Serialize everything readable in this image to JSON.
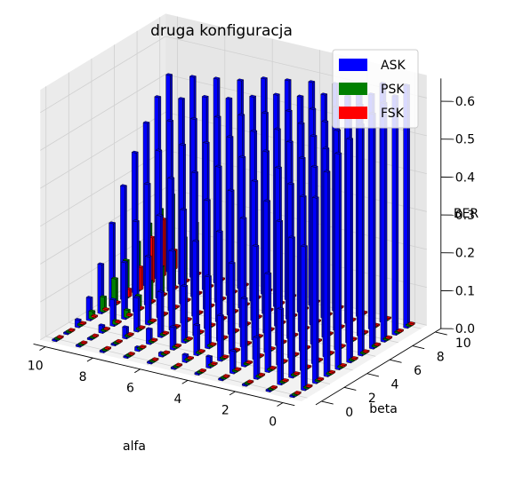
{
  "chart_data": {
    "type": "bar",
    "subtype": "3d-bar",
    "title": "druga konfiguracja",
    "xlabel": "alfa",
    "ylabel": "beta",
    "zlabel": "BER",
    "x_ticks": [
      "0",
      "2",
      "4",
      "6",
      "8",
      "10"
    ],
    "y_ticks": [
      "0",
      "2",
      "4",
      "6",
      "8",
      "10"
    ],
    "z_ticks": [
      "0.0",
      "0.1",
      "0.2",
      "0.3",
      "0.4",
      "0.5",
      "0.6"
    ],
    "xlim": [
      0,
      10
    ],
    "ylim": [
      0,
      10
    ],
    "zlim": [
      0,
      0.6
    ],
    "grid": true,
    "legend_position": "top-right",
    "x": [
      0,
      1,
      2,
      3,
      4,
      5,
      6,
      7,
      8,
      9,
      10
    ],
    "y": [
      0,
      1,
      2,
      3,
      4,
      5,
      6,
      7,
      8,
      9,
      10
    ],
    "series": [
      {
        "name": "ASK",
        "color": "#0000ff",
        "values": [
          [
            0.0,
            0.38,
            0.49,
            0.54,
            0.57,
            0.59,
            0.61,
            0.62,
            0.63,
            0.63,
            0.64
          ],
          [
            0.0,
            0.2,
            0.37,
            0.46,
            0.52,
            0.55,
            0.58,
            0.6,
            0.61,
            0.62,
            0.63
          ],
          [
            0.0,
            0.11,
            0.26,
            0.38,
            0.46,
            0.51,
            0.55,
            0.57,
            0.59,
            0.6,
            0.61
          ],
          [
            0.0,
            0.06,
            0.18,
            0.3,
            0.4,
            0.47,
            0.52,
            0.55,
            0.57,
            0.59,
            0.6
          ],
          [
            0.0,
            0.03,
            0.12,
            0.24,
            0.34,
            0.42,
            0.48,
            0.52,
            0.55,
            0.57,
            0.59
          ],
          [
            0.0,
            0.02,
            0.08,
            0.19,
            0.29,
            0.38,
            0.45,
            0.5,
            0.53,
            0.56,
            0.58
          ],
          [
            0.0,
            0.01,
            0.06,
            0.15,
            0.25,
            0.34,
            0.41,
            0.47,
            0.51,
            0.54,
            0.57
          ],
          [
            0.0,
            0.01,
            0.04,
            0.12,
            0.21,
            0.3,
            0.38,
            0.44,
            0.49,
            0.52,
            0.55
          ],
          [
            0.0,
            0.0,
            0.03,
            0.09,
            0.18,
            0.27,
            0.35,
            0.42,
            0.47,
            0.51,
            0.54
          ],
          [
            0.0,
            0.0,
            0.02,
            0.07,
            0.15,
            0.24,
            0.32,
            0.39,
            0.45,
            0.49,
            0.53
          ],
          [
            0.0,
            0.0,
            0.02,
            0.06,
            0.13,
            0.22,
            0.3,
            0.37,
            0.43,
            0.48,
            0.52
          ]
        ]
      },
      {
        "name": "PSK",
        "color": "#008000",
        "values": [
          [
            0.0,
            0.0,
            0.0,
            0.0,
            0.0,
            0.0,
            0.0,
            0.0,
            0.0,
            0.0,
            0.0
          ],
          [
            0.0,
            0.0,
            0.0,
            0.0,
            0.0,
            0.0,
            0.0,
            0.0,
            0.0,
            0.0,
            0.0
          ],
          [
            0.0,
            0.0,
            0.0,
            0.0,
            0.0,
            0.0,
            0.0,
            0.0,
            0.0,
            0.0,
            0.0
          ],
          [
            0.0,
            0.0,
            0.0,
            0.0,
            0.0,
            0.0,
            0.0,
            0.0,
            0.0,
            0.0,
            0.0
          ],
          [
            0.0,
            0.0,
            0.0,
            0.0,
            0.0,
            0.0,
            0.0,
            0.0,
            0.0,
            0.0,
            0.0
          ],
          [
            0.0,
            0.0,
            0.0,
            0.0,
            0.0,
            0.0,
            0.0,
            0.0,
            0.0,
            0.0,
            0.0
          ],
          [
            0.0,
            0.0,
            0.0,
            0.0,
            0.0,
            0.0,
            0.0,
            0.0,
            0.0,
            0.0,
            0.0
          ],
          [
            0.0,
            0.0,
            0.0,
            0.0,
            0.0,
            0.0,
            0.0,
            0.0,
            0.0,
            0.0,
            0.0
          ],
          [
            0.0,
            0.0,
            0.0,
            0.0,
            0.0,
            0.0,
            0.0,
            0.0,
            0.0,
            0.0,
            0.0
          ],
          [
            0.0,
            0.0,
            0.0,
            0.01,
            0.02,
            0.04,
            0.06,
            0.08,
            0.1,
            0.12,
            0.14
          ],
          [
            0.0,
            0.0,
            0.0,
            0.02,
            0.04,
            0.07,
            0.1,
            0.13,
            0.16,
            0.18,
            0.2
          ]
        ]
      },
      {
        "name": "FSK",
        "color": "#ff0000",
        "values": [
          [
            0.0,
            0.0,
            0.0,
            0.0,
            0.0,
            0.0,
            0.0,
            0.0,
            0.0,
            0.0,
            0.0
          ],
          [
            0.0,
            0.0,
            0.0,
            0.0,
            0.0,
            0.0,
            0.0,
            0.0,
            0.0,
            0.0,
            0.0
          ],
          [
            0.0,
            0.0,
            0.0,
            0.0,
            0.0,
            0.0,
            0.0,
            0.0,
            0.0,
            0.0,
            0.0
          ],
          [
            0.0,
            0.0,
            0.0,
            0.0,
            0.0,
            0.0,
            0.0,
            0.0,
            0.0,
            0.0,
            0.0
          ],
          [
            0.0,
            0.0,
            0.0,
            0.0,
            0.0,
            0.0,
            0.0,
            0.0,
            0.0,
            0.0,
            0.0
          ],
          [
            0.0,
            0.0,
            0.0,
            0.0,
            0.0,
            0.0,
            0.0,
            0.0,
            0.0,
            0.0,
            0.0
          ],
          [
            0.0,
            0.0,
            0.0,
            0.0,
            0.0,
            0.0,
            0.0,
            0.0,
            0.0,
            0.0,
            0.0
          ],
          [
            0.0,
            0.0,
            0.0,
            0.0,
            0.0,
            0.0,
            0.0,
            0.0,
            0.0,
            0.0,
            0.0
          ],
          [
            0.0,
            0.0,
            0.0,
            0.0,
            0.0,
            0.0,
            0.0,
            0.0,
            0.0,
            0.0,
            0.0
          ],
          [
            0.0,
            0.0,
            0.0,
            0.0,
            0.0,
            0.0,
            0.0,
            0.0,
            0.0,
            0.0,
            0.0
          ],
          [
            0.0,
            0.0,
            0.0,
            0.0,
            0.0,
            0.0,
            0.02,
            0.06,
            0.12,
            0.15,
            0.05
          ]
        ]
      }
    ]
  }
}
